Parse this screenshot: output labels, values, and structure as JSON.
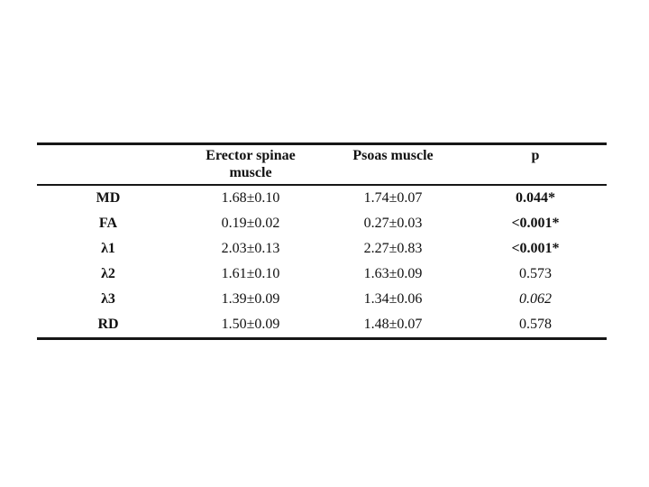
{
  "table": {
    "columns": {
      "row_header": "",
      "col1": "Erector spinae muscle",
      "col2": "Psoas muscle",
      "col3": "p"
    },
    "rows": [
      {
        "label": "MD",
        "erector": "1.68±0.10",
        "psoas": "1.74±0.07",
        "p": "0.044*",
        "p_style": "bold"
      },
      {
        "label": "FA",
        "erector": "0.19±0.02",
        "psoas": "0.27±0.03",
        "p": "<0.001*",
        "p_style": "bold"
      },
      {
        "label": "λ1",
        "erector": "2.03±0.13",
        "psoas": "2.27±0.83",
        "p": "<0.001*",
        "p_style": "bold"
      },
      {
        "label": "λ2",
        "erector": "1.61±0.10",
        "psoas": "1.63±0.09",
        "p": "0.573",
        "p_style": "normal"
      },
      {
        "label": "λ3",
        "erector": "1.39±0.09",
        "psoas": "1.34±0.06",
        "p": "0.062",
        "p_style": "italic"
      },
      {
        "label": "RD",
        "erector": "1.50±0.09",
        "psoas": "1.48±0.07",
        "p": "0.578",
        "p_style": "normal"
      }
    ],
    "rule_color": "#161616",
    "background_color": "#ffffff"
  },
  "chart_data": {
    "type": "table",
    "columns": [
      "",
      "Erector spinae muscle",
      "Psoas muscle",
      "p"
    ],
    "rows": [
      [
        "MD",
        "1.68±0.10",
        "1.74±0.07",
        "0.044*"
      ],
      [
        "FA",
        "0.19±0.02",
        "0.27±0.03",
        "<0.001*"
      ],
      [
        "λ1",
        "2.03±0.13",
        "2.27±0.83",
        "<0.001*"
      ],
      [
        "λ2",
        "1.61±0.10",
        "1.63±0.09",
        "0.573"
      ],
      [
        "λ3",
        "1.39±0.09",
        "1.34±0.06",
        "0.062"
      ],
      [
        "RD",
        "1.50±0.09",
        "1.48±0.07",
        "0.578"
      ]
    ]
  }
}
